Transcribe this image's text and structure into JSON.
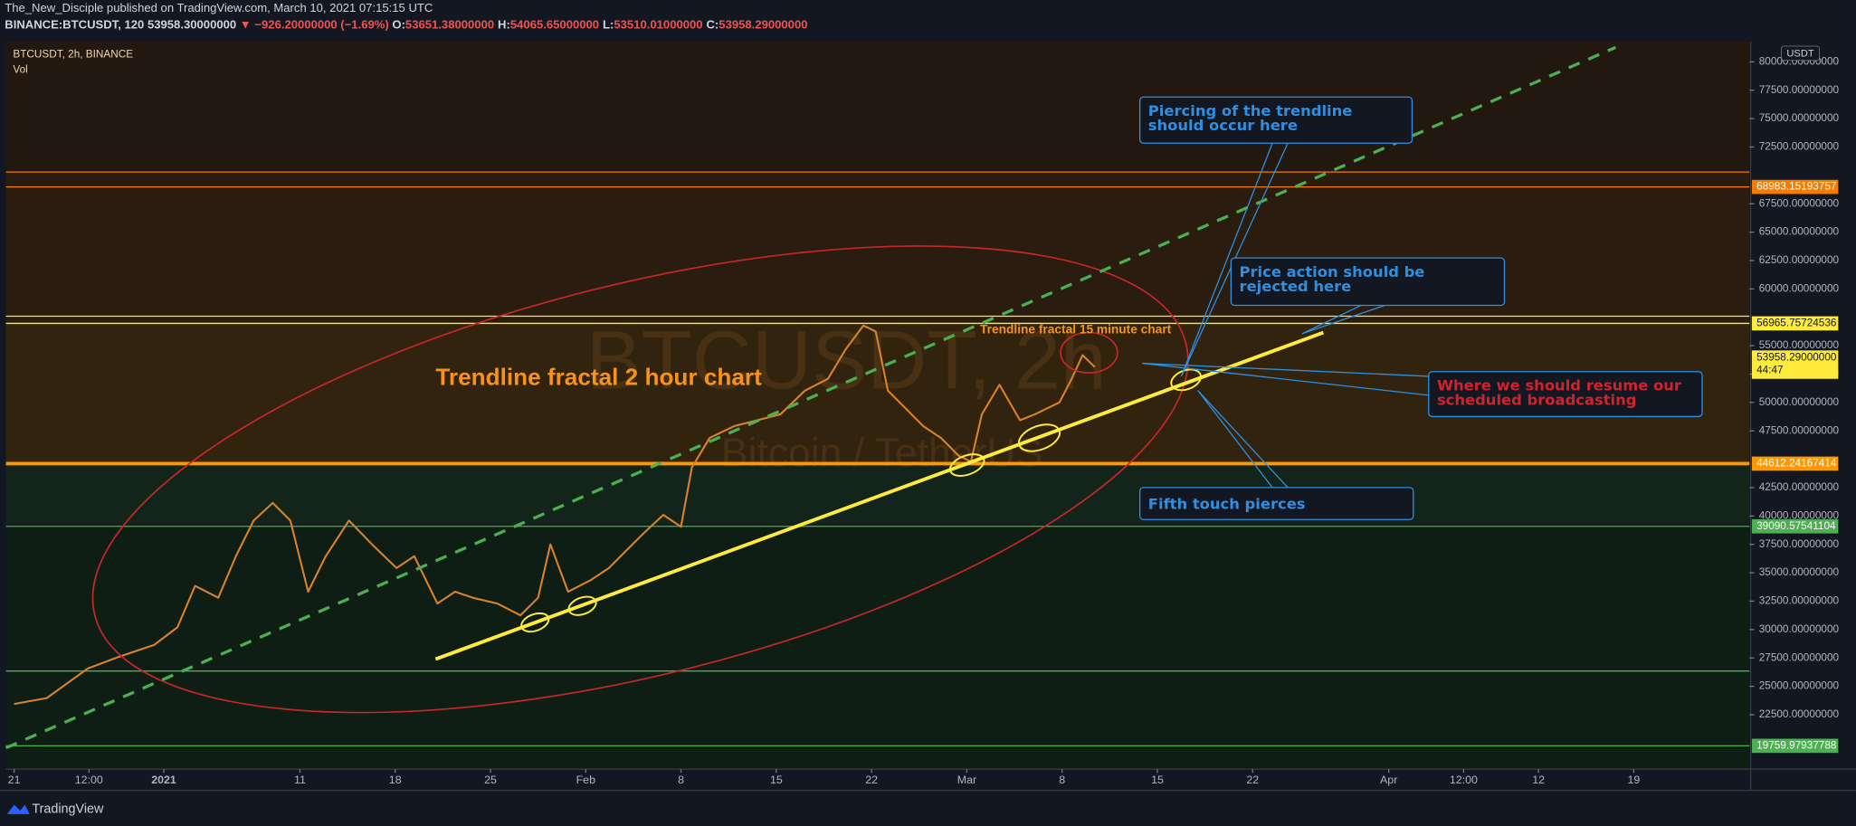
{
  "header": {
    "published": "The_New_Disciple published on TradingView.com, March 10, 2021 07:15:15 UTC",
    "symbol": "BINANCE:BTCUSDT, 120",
    "last": "53958.30000000",
    "change": "▼ −926.20000000 (−1.69%)",
    "ohlc": [
      {
        "key": "O:",
        "value": "53651.38000000"
      },
      {
        "key": "H:",
        "value": "54065.65000000"
      },
      {
        "key": "L:",
        "value": "53510.01000000"
      },
      {
        "key": "C:",
        "value": "53958.29000000"
      }
    ]
  },
  "chart_data": {
    "type": "line",
    "legend": "BTCUSDT, 2h, BINANCE",
    "indicator": "Vol",
    "watermark": "BTCUSDT, 2h",
    "watermark_sub": "Bitcoin / TetherUS",
    "currency": "USDT",
    "xlim": [
      -0.6,
      127.5
    ],
    "ylim": [
      17700,
      81800
    ],
    "xticks": [
      {
        "value": 0,
        "label": "21"
      },
      {
        "value": 5.5,
        "label": "12:00"
      },
      {
        "value": 11,
        "label": "2021"
      },
      {
        "value": 21,
        "label": "11"
      },
      {
        "value": 28,
        "label": "18"
      },
      {
        "value": 35,
        "label": "25"
      },
      {
        "value": 42,
        "label": "Feb"
      },
      {
        "value": 49,
        "label": "8"
      },
      {
        "value": 56,
        "label": "15"
      },
      {
        "value": 63,
        "label": "22"
      },
      {
        "value": 70,
        "label": "Mar"
      },
      {
        "value": 77,
        "label": "8"
      },
      {
        "value": 84,
        "label": "15"
      },
      {
        "value": 91,
        "label": "22"
      },
      {
        "value": 101,
        "label": "Apr"
      },
      {
        "value": 106.5,
        "label": "12:00"
      },
      {
        "value": 112,
        "label": "12"
      },
      {
        "value": 119,
        "label": "19"
      }
    ],
    "yticks": [
      {
        "value": 22500,
        "label": "22500.00000000"
      },
      {
        "value": 25000,
        "label": "25000.00000000"
      },
      {
        "value": 27500,
        "label": "27500.00000000"
      },
      {
        "value": 30000,
        "label": "30000.00000000"
      },
      {
        "value": 32500,
        "label": "32500.00000000"
      },
      {
        "value": 35000,
        "label": "35000.00000000"
      },
      {
        "value": 37500,
        "label": "37500.00000000"
      },
      {
        "value": 40000,
        "label": "40000.00000000"
      },
      {
        "value": 42500,
        "label": "42500.00000000"
      },
      {
        "value": 47500,
        "label": "47500.00000000"
      },
      {
        "value": 50000,
        "label": "50000.00000000"
      },
      {
        "value": 52500,
        "label": "52500.00000000"
      },
      {
        "value": 55000,
        "label": "55000.00000000"
      },
      {
        "value": 60000,
        "label": "60000.00000000"
      },
      {
        "value": 62500,
        "label": "62500.00000000"
      },
      {
        "value": 65000,
        "label": "65000.00000000"
      },
      {
        "value": 67500,
        "label": "67500.00000000"
      },
      {
        "value": 72500,
        "label": "72500.00000000"
      },
      {
        "value": 75000,
        "label": "75000.00000000"
      },
      {
        "value": 77500,
        "label": "77500.00000000"
      },
      {
        "value": 80000,
        "label": "80000.00000000"
      }
    ],
    "series": [
      {
        "name": "BTCUSDT",
        "color": "#d9822b",
        "x": [
          0,
          2.4,
          5.4,
          7.7,
          10.3,
          12,
          13.3,
          15,
          16.3,
          17.6,
          19,
          20.3,
          21.6,
          22.9,
          24.6,
          26.3,
          28.1,
          29.4,
          31.1,
          32.4,
          33.7,
          35.5,
          37.2,
          38.5,
          39.4,
          40.7,
          42.4,
          43.7,
          45,
          46.3,
          47.7,
          49,
          49.8,
          51.1,
          52.9,
          54.6,
          56.3,
          58.1,
          59.8,
          61.1,
          62.4,
          63.3,
          64.2,
          65.5,
          66.8,
          68.1,
          69.4,
          70.3,
          71.1,
          72.4,
          73.9,
          75,
          76.8,
          77.7,
          78.5,
          79.4
        ],
        "values": [
          23440,
          23960,
          26560,
          27600,
          28650,
          30200,
          33850,
          32800,
          36460,
          39600,
          41150,
          39600,
          33330,
          36460,
          39600,
          37500,
          35420,
          36460,
          32290,
          33330,
          32800,
          32290,
          31250,
          32800,
          37500,
          33330,
          34380,
          35420,
          36980,
          38540,
          40100,
          39060,
          44270,
          46870,
          47920,
          48440,
          48960,
          51040,
          52080,
          54690,
          56770,
          56250,
          51040,
          49480,
          47920,
          46870,
          45310,
          44790,
          48960,
          51560,
          48440,
          48960,
          50000,
          52080,
          54170,
          53120
        ]
      }
    ],
    "levels": [
      {
        "value": 70300,
        "color": "#f57c00",
        "width": 1
      },
      {
        "value": 68983.15193757,
        "label": "68983.15193757",
        "color": "#f57c00",
        "width": 1
      },
      {
        "value": 57600,
        "color": "#ffeb3b",
        "width": 1
      },
      {
        "value": 56965.75724536,
        "label": "56965.75724536",
        "color": "#ffeb3b",
        "width": 1
      },
      {
        "value": 44612.24167414,
        "label": "44612.24167414",
        "color": "#ff9800",
        "width": 3
      },
      {
        "value": 39090.57541104,
        "label": "39090.57541104",
        "color": "#4caf50",
        "width": 1
      },
      {
        "value": 26350,
        "color": "#4caf50",
        "width": 1
      },
      {
        "value": 19759.97937788,
        "label": "19759.97937788",
        "color": "#4caf50",
        "width": 1
      }
    ],
    "last_price": {
      "value": 53958.29,
      "label": "53958.29000000",
      "countdown": "44:47",
      "color": "#ffeb3b"
    },
    "annotations": [
      "Piercing of the trendline should occur here",
      "Price action should be rejected here",
      "Where we should resume our scheduled broadcasting",
      "Fifth touch pierces",
      "Trendline fractal 2 hour chart",
      "Trendline fractal 15 minute chart"
    ]
  },
  "footer": "TradingView"
}
